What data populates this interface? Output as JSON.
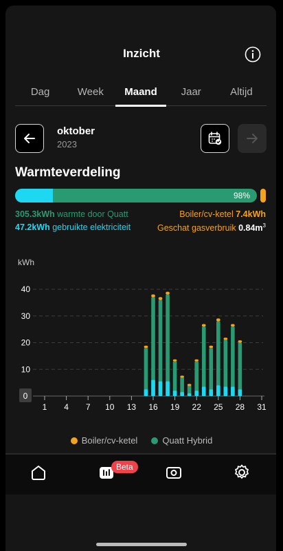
{
  "header": {
    "title": "Inzicht",
    "info_icon": "info-icon"
  },
  "tabs": [
    {
      "label": "Dag",
      "active": false
    },
    {
      "label": "Week",
      "active": false
    },
    {
      "label": "Maand",
      "active": true
    },
    {
      "label": "Jaar",
      "active": false
    },
    {
      "label": "Altijd",
      "active": false
    }
  ],
  "period": {
    "month": "oktober",
    "year": "2023"
  },
  "distribution": {
    "title": "Warmteverdeling",
    "heat_percent_label": "98%",
    "electricity_fraction": 0.155,
    "heat_value": "305.3kWh",
    "heat_label": "warmte door Quatt",
    "electricity_value": "47.2kWh",
    "electricity_label": "gebruikte elektriciteit",
    "boiler_label": "Boiler/cv-ketel",
    "boiler_value": "7.4kWh",
    "gas_label": "Geschat gasverbruik",
    "gas_value": "0.84m",
    "gas_unit_sup": "3"
  },
  "chart_data": {
    "type": "bar",
    "ylabel": "kWh",
    "ylim": [
      0,
      45
    ],
    "yticks": [
      10,
      20,
      30,
      40
    ],
    "zero_label": "0",
    "xticks": [
      "1",
      "4",
      "7",
      "10",
      "13",
      "16",
      "19",
      "22",
      "25",
      "28",
      "31"
    ],
    "days": [
      15,
      16,
      17,
      18,
      19,
      20,
      21,
      22,
      23,
      24,
      25,
      26,
      27,
      28
    ],
    "series": [
      {
        "name": "Quatt Hybrid",
        "values": [
          18,
          37,
          36,
          38,
          13,
          7,
          4,
          13,
          26,
          18,
          28,
          21,
          26,
          20
        ]
      },
      {
        "name": "Boiler/cv-ketel",
        "values": [
          0.6,
          0.8,
          0.8,
          0.8,
          0.5,
          0.4,
          0.3,
          0.5,
          0.7,
          0.6,
          0.8,
          0.6,
          0.7,
          0.6
        ]
      }
    ],
    "electricity_part": [
      2.5,
      6,
      5.5,
      5.5,
      2,
      1.5,
      1,
      2,
      3.5,
      2.5,
      4,
      3.5,
      3.5,
      2.5
    ],
    "colors": {
      "quatt": "#2a9a72",
      "electricity": "#1ed8f2",
      "boiler": "#f5a21c"
    },
    "legend": [
      "Boiler/cv-ketel",
      "Quatt Hybrid"
    ]
  },
  "bottom_nav": {
    "items": [
      "home-icon",
      "insights-icon",
      "device-icon",
      "settings-icon"
    ],
    "badge": "Beta"
  }
}
